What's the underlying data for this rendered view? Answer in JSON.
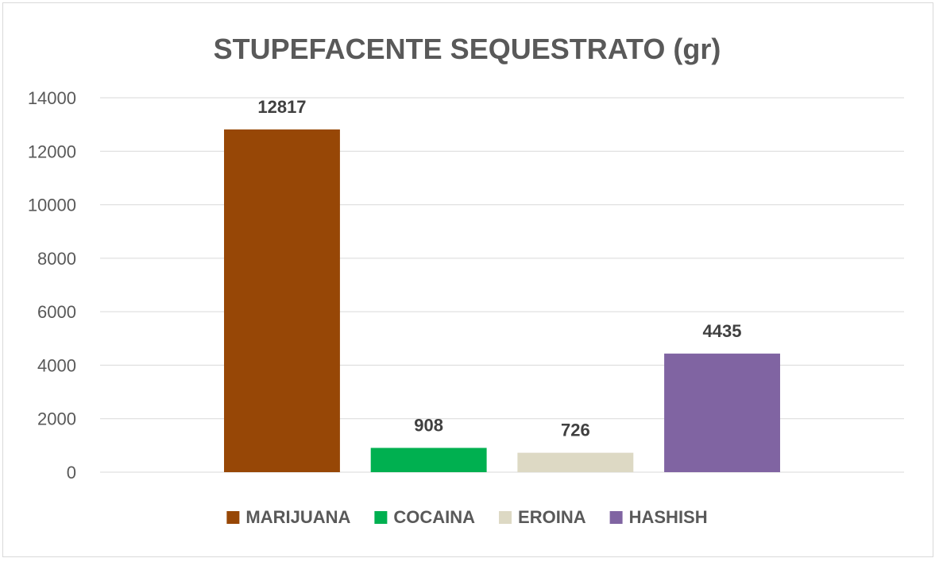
{
  "chart_data": {
    "type": "bar",
    "title": "STUPEFACENTE SEQUESTRATO (gr)",
    "xlabel": "",
    "ylabel": "",
    "ylim": [
      0,
      14000
    ],
    "yticks": [
      0,
      2000,
      4000,
      6000,
      8000,
      10000,
      12000,
      14000
    ],
    "grid": true,
    "legend_position": "bottom",
    "series": [
      {
        "name": "MARIJUANA",
        "value": 12817,
        "color": "#974706"
      },
      {
        "name": "COCAINA",
        "value": 908,
        "color": "#00b050"
      },
      {
        "name": "EROINA",
        "value": 726,
        "color": "#ddd9c4"
      },
      {
        "name": "HASHISH",
        "value": 4435,
        "color": "#8064a2"
      }
    ]
  }
}
